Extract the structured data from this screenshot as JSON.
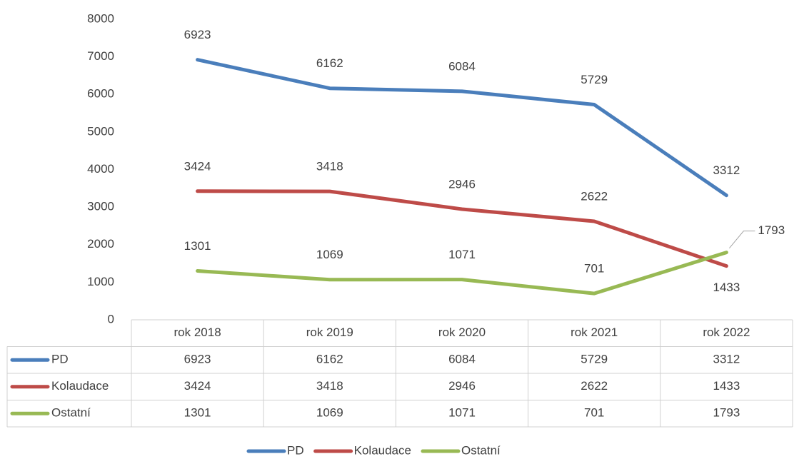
{
  "chart_data": {
    "type": "line",
    "categories": [
      "rok 2018",
      "rok 2019",
      "rok 2020",
      "rok 2021",
      "rok 2022"
    ],
    "series": [
      {
        "name": "PD",
        "color": "#4a7ebb",
        "values": [
          6923,
          6162,
          6084,
          5729,
          3312
        ]
      },
      {
        "name": "Kolaudace",
        "color": "#be4b48",
        "values": [
          3424,
          3418,
          2946,
          2622,
          1433
        ]
      },
      {
        "name": "Ostatní",
        "color": "#98b954",
        "values": [
          1301,
          1069,
          1071,
          701,
          1793
        ]
      }
    ],
    "ylim": [
      0,
      8000
    ],
    "yticks": [
      0,
      1000,
      2000,
      3000,
      4000,
      5000,
      6000,
      7000,
      8000
    ],
    "grid": false,
    "legend": "bottom",
    "data_table": true
  }
}
